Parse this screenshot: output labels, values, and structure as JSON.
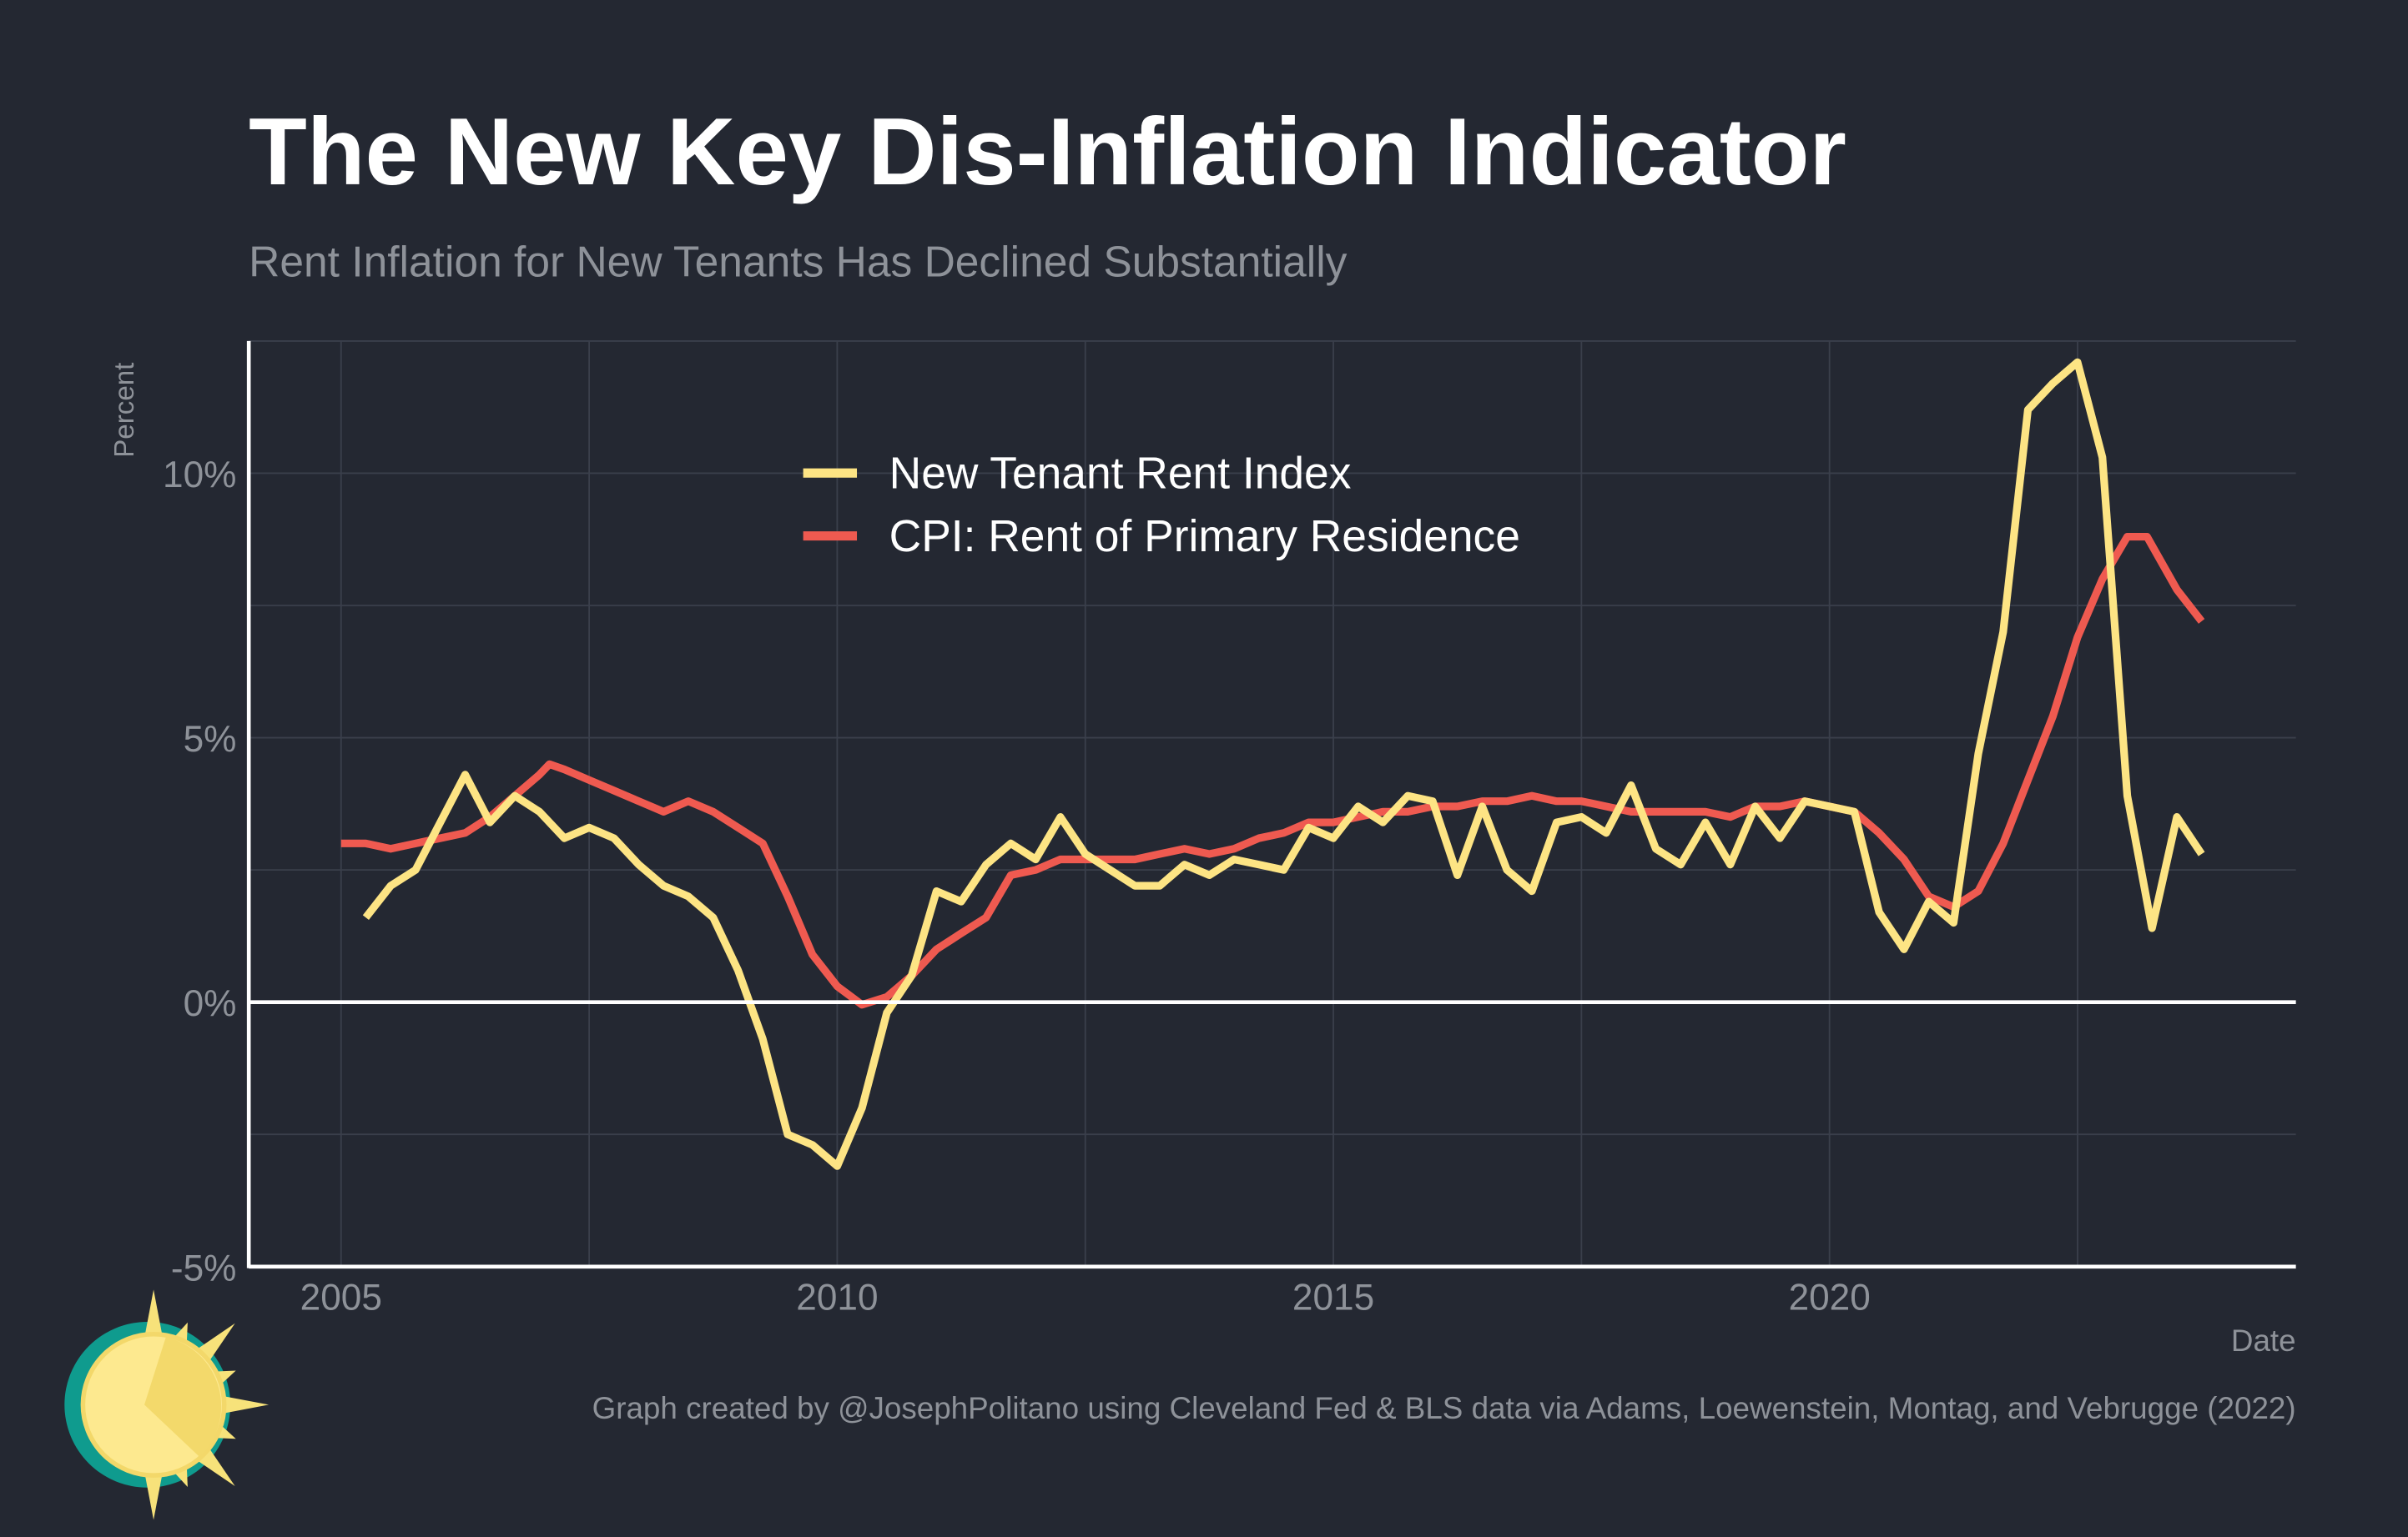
{
  "title": "The New Key Dis-Inflation Indicator",
  "subtitle": "Rent Inflation for New Tenants Has Declined Substantially",
  "caption": "Graph created by @JosephPolitano using Cleveland Fed & BLS data via Adams, Loewenstein, Montag, and Vebrugge (2022)",
  "colors": {
    "background": "#242832",
    "grid": "#3a3f4b",
    "axis": "#ffffff",
    "text_muted": "#8e9299",
    "new_tenant": "#fde484",
    "cpi_rent": "#ef5a50"
  },
  "chart_data": {
    "type": "line",
    "xlabel": "Date",
    "ylabel": "Percent",
    "xlim": [
      2004.07,
      2024.7
    ],
    "ylim": [
      -5,
      12.5
    ],
    "x_ticks": [
      2005,
      2010,
      2015,
      2020
    ],
    "x_tick_labels": [
      "2005",
      "2010",
      "2015",
      "2020"
    ],
    "y_ticks": [
      -5,
      0,
      5,
      10
    ],
    "y_tick_labels": [
      "-5%",
      "0%",
      "5%",
      "10%"
    ],
    "grid": true,
    "legend_position": "top-center",
    "zero_line": true,
    "series": [
      {
        "name": "New Tenant Rent Index",
        "color": "#fde484",
        "x": [
          2005.25,
          2005.5,
          2005.75,
          2006,
          2006.25,
          2006.5,
          2006.75,
          2007,
          2007.25,
          2007.5,
          2007.75,
          2008,
          2008.25,
          2008.5,
          2008.75,
          2009,
          2009.25,
          2009.5,
          2009.75,
          2010,
          2010.25,
          2010.5,
          2010.75,
          2011,
          2011.25,
          2011.5,
          2011.75,
          2012,
          2012.25,
          2012.5,
          2012.75,
          2013,
          2013.25,
          2013.5,
          2013.75,
          2014,
          2014.25,
          2014.5,
          2014.75,
          2015,
          2015.25,
          2015.5,
          2015.75,
          2016,
          2016.25,
          2016.5,
          2016.75,
          2017,
          2017.25,
          2017.5,
          2017.75,
          2018,
          2018.25,
          2018.5,
          2018.75,
          2019,
          2019.25,
          2019.5,
          2019.75,
          2020,
          2020.25,
          2020.5,
          2020.75,
          2021,
          2021.25,
          2021.5,
          2021.75,
          2022,
          2022.25,
          2022.5,
          2022.75,
          2023,
          2023.25,
          2023.5,
          2023.75
        ],
        "values": [
          1.6,
          2.2,
          2.5,
          3.4,
          4.3,
          3.4,
          3.9,
          3.6,
          3.1,
          3.3,
          3.1,
          2.6,
          2.2,
          2.0,
          1.6,
          0.6,
          -0.7,
          -2.5,
          -2.7,
          -3.1,
          -2.0,
          -0.2,
          0.5,
          2.1,
          1.9,
          2.6,
          3.0,
          2.7,
          3.5,
          2.8,
          2.5,
          2.2,
          2.2,
          2.6,
          2.4,
          2.7,
          2.6,
          2.5,
          3.3,
          3.1,
          3.7,
          3.4,
          3.9,
          3.8,
          2.4,
          3.7,
          2.5,
          2.1,
          3.4,
          3.5,
          3.2,
          4.1,
          2.9,
          2.6,
          3.4,
          2.6,
          3.7,
          3.1,
          3.8,
          3.7,
          3.6,
          1.7,
          1.0,
          1.9,
          1.5,
          4.7,
          7.0,
          11.2,
          11.7,
          12.1,
          10.3,
          3.9,
          1.4,
          3.5,
          2.8
        ]
      },
      {
        "name": "CPI: Rent of Primary Residence",
        "color": "#ef5a50",
        "x": [
          2005,
          2005.25,
          2005.5,
          2005.75,
          2006,
          2006.25,
          2006.5,
          2006.75,
          2007,
          2007.1,
          2007.25,
          2007.5,
          2007.75,
          2008,
          2008.25,
          2008.5,
          2008.75,
          2009,
          2009.25,
          2009.5,
          2009.75,
          2010,
          2010.25,
          2010.5,
          2010.75,
          2011,
          2011.25,
          2011.5,
          2011.75,
          2012,
          2012.25,
          2012.5,
          2012.75,
          2013,
          2013.25,
          2013.5,
          2013.75,
          2014,
          2014.25,
          2014.5,
          2014.75,
          2015,
          2015.25,
          2015.5,
          2015.75,
          2016,
          2016.25,
          2016.5,
          2016.75,
          2017,
          2017.25,
          2017.5,
          2017.75,
          2018,
          2018.25,
          2018.5,
          2018.75,
          2019,
          2019.25,
          2019.5,
          2019.75,
          2020,
          2020.25,
          2020.5,
          2020.75,
          2021,
          2021.25,
          2021.5,
          2021.75,
          2022,
          2022.25,
          2022.5,
          2022.75,
          2023,
          2023.2,
          2023.5,
          2023.75
        ],
        "values": [
          3.0,
          3.0,
          2.9,
          3.0,
          3.1,
          3.2,
          3.5,
          3.9,
          4.3,
          4.5,
          4.4,
          4.2,
          4.0,
          3.8,
          3.6,
          3.8,
          3.6,
          3.3,
          3.0,
          2.0,
          0.9,
          0.3,
          -0.05,
          0.1,
          0.5,
          1.0,
          1.3,
          1.6,
          2.4,
          2.5,
          2.7,
          2.7,
          2.7,
          2.7,
          2.8,
          2.9,
          2.8,
          2.9,
          3.1,
          3.2,
          3.4,
          3.4,
          3.5,
          3.6,
          3.6,
          3.7,
          3.7,
          3.8,
          3.8,
          3.9,
          3.8,
          3.8,
          3.7,
          3.6,
          3.6,
          3.6,
          3.6,
          3.5,
          3.7,
          3.7,
          3.8,
          3.7,
          3.6,
          3.2,
          2.7,
          2.0,
          1.8,
          2.1,
          3.0,
          4.2,
          5.4,
          6.9,
          8.0,
          8.8,
          8.8,
          7.8,
          7.2
        ]
      }
    ]
  }
}
